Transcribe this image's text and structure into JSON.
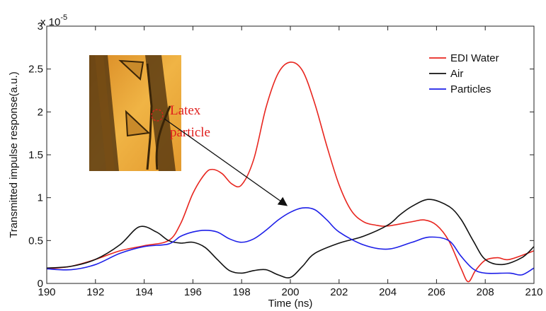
{
  "chart_data": {
    "type": "line",
    "title": "",
    "xlabel": "Time (ns)",
    "ylabel": "Transmitted impulse response(a.u.)",
    "y_multiplier_label": "x 10",
    "y_multiplier_exponent": "-5",
    "xlim": [
      190,
      210
    ],
    "ylim": [
      0,
      3
    ],
    "x_ticks": [
      "190",
      "192",
      "194",
      "196",
      "198",
      "200",
      "202",
      "204",
      "206",
      "208",
      "210"
    ],
    "y_ticks": [
      "0",
      "0.5",
      "1",
      "1.5",
      "2",
      "2.5",
      "3"
    ],
    "grid": false,
    "legend_position": "top-right",
    "series": [
      {
        "name": "EDI Water",
        "color": "#e8261f",
        "x": [
          190,
          191,
          192,
          193,
          194,
          195,
          195.5,
          196,
          196.5,
          196.8,
          197.2,
          197.6,
          198,
          198.5,
          199,
          199.5,
          200,
          200.5,
          201,
          201.5,
          202,
          202.5,
          203,
          203.5,
          204,
          205,
          205.5,
          206,
          206.5,
          207,
          207.3,
          207.6,
          208,
          208.5,
          209,
          210
        ],
        "y": [
          0.17,
          0.2,
          0.28,
          0.38,
          0.44,
          0.5,
          0.7,
          1.05,
          1.28,
          1.33,
          1.28,
          1.16,
          1.15,
          1.45,
          2.05,
          2.45,
          2.58,
          2.48,
          2.1,
          1.6,
          1.15,
          0.85,
          0.72,
          0.68,
          0.67,
          0.72,
          0.74,
          0.68,
          0.5,
          0.18,
          0.02,
          0.15,
          0.27,
          0.3,
          0.28,
          0.38
        ]
      },
      {
        "name": "Air",
        "color": "#111111",
        "x": [
          190,
          191,
          192,
          193,
          193.8,
          194.5,
          195,
          195.5,
          196,
          196.5,
          197,
          197.5,
          198,
          198.5,
          199,
          199.5,
          200,
          200.5,
          201,
          202,
          203,
          204,
          204.5,
          205,
          205.7,
          206.5,
          207,
          207.5,
          208,
          208.7,
          209.5,
          210
        ],
        "y": [
          0.18,
          0.2,
          0.28,
          0.45,
          0.66,
          0.6,
          0.5,
          0.47,
          0.48,
          0.42,
          0.28,
          0.15,
          0.12,
          0.15,
          0.16,
          0.1,
          0.07,
          0.2,
          0.35,
          0.47,
          0.55,
          0.68,
          0.8,
          0.9,
          0.98,
          0.9,
          0.75,
          0.5,
          0.28,
          0.22,
          0.3,
          0.43
        ]
      },
      {
        "name": "Particles",
        "color": "#1d1fe8",
        "x": [
          190,
          191,
          192,
          193,
          194,
          195,
          195.5,
          196,
          196.5,
          197,
          197.5,
          198,
          198.5,
          199,
          199.5,
          200,
          200.5,
          201,
          201.5,
          202,
          203,
          204,
          205,
          205.7,
          206.5,
          207,
          207.5,
          208,
          209,
          209.5,
          210
        ],
        "y": [
          0.17,
          0.16,
          0.22,
          0.35,
          0.43,
          0.46,
          0.55,
          0.6,
          0.62,
          0.6,
          0.52,
          0.48,
          0.52,
          0.62,
          0.74,
          0.83,
          0.88,
          0.86,
          0.74,
          0.6,
          0.45,
          0.4,
          0.48,
          0.54,
          0.5,
          0.32,
          0.17,
          0.12,
          0.12,
          0.1,
          0.18
        ]
      }
    ],
    "annotations": {
      "inset_label": "Latex\nparticle"
    }
  }
}
